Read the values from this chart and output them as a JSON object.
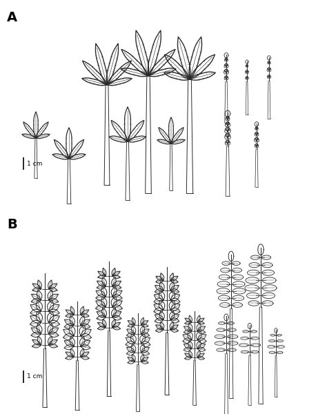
{
  "panel_A_label": "A",
  "panel_B_label": "B",
  "scale_bar_label": "1 cm",
  "bg_color": "#ffffff",
  "line_color": "#2a2a2a",
  "fig_width": 4.74,
  "fig_height": 6.0,
  "dpi": 100
}
